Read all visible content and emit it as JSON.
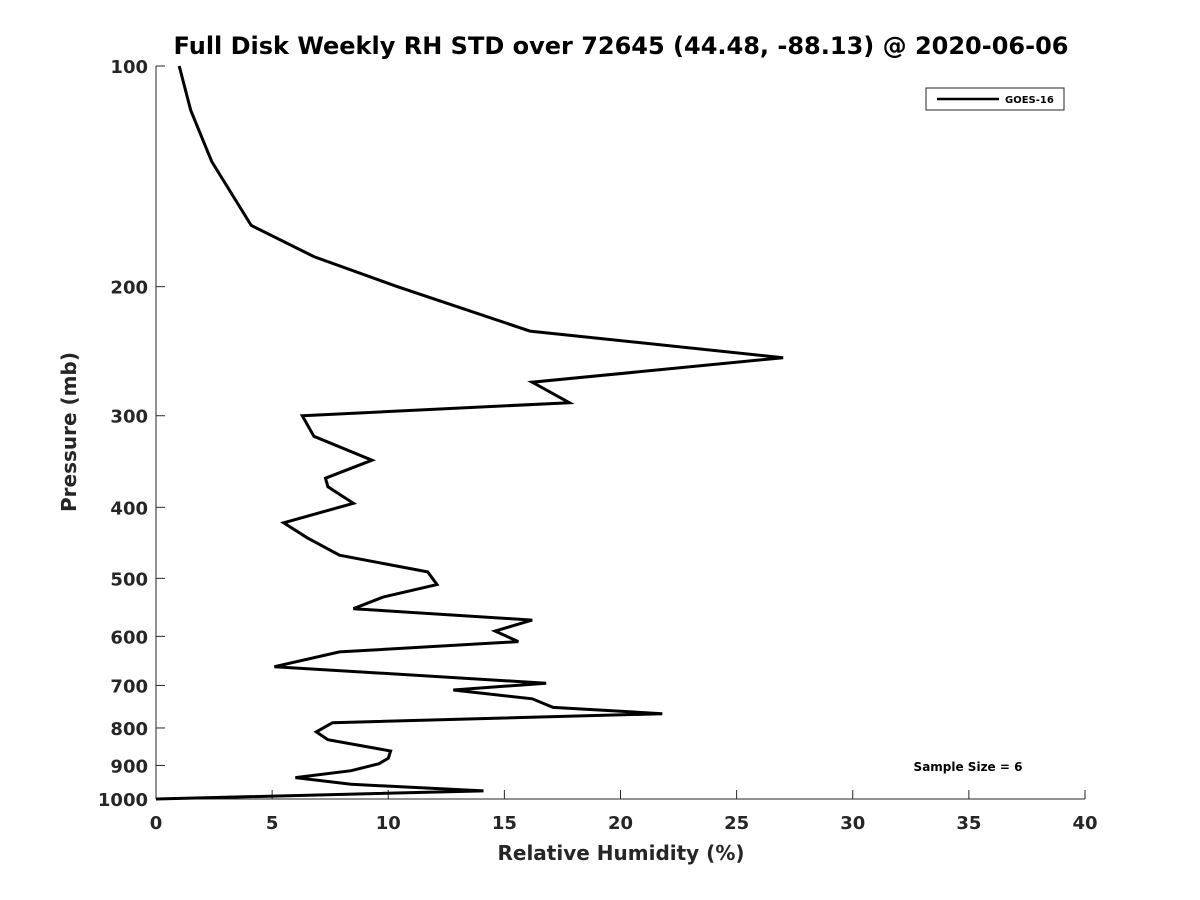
{
  "chart_data": {
    "type": "line",
    "title": "Full Disk Weekly RH STD over 72645 (44.48, -88.13) @ 2020-06-06",
    "xlabel": "Relative Humidity (%)",
    "ylabel": "Pressure (mb)",
    "xlim": [
      0,
      40
    ],
    "ylim": [
      100,
      1000
    ],
    "yscale": "log",
    "y_reversed": true,
    "grid": false,
    "xticks": [
      0,
      5,
      10,
      15,
      20,
      25,
      30,
      35,
      40
    ],
    "yticks": [
      100,
      200,
      300,
      400,
      500,
      600,
      700,
      800,
      900,
      1000
    ],
    "legend_position": "top-right",
    "series": [
      {
        "name": "GOES-16",
        "color": "#000000",
        "x": [
          1.0,
          1.5,
          2.4,
          4.1,
          6.8,
          10.4,
          16.1,
          27.0,
          16.2,
          17.8,
          6.3,
          6.8,
          9.3,
          7.3,
          7.4,
          8.5,
          5.5,
          6.5,
          7.9,
          11.7,
          12.1,
          9.8,
          8.5,
          16.2,
          14.6,
          15.6,
          7.9,
          5.1,
          16.8,
          12.8,
          16.2,
          17.1,
          21.8,
          7.6,
          6.9,
          7.4,
          10.1,
          10.0,
          9.6,
          8.4,
          6.0,
          8.4,
          14.1,
          0.0
        ],
        "y": [
          100,
          115,
          135,
          165,
          182,
          200,
          230,
          250,
          270,
          288,
          300,
          320,
          345,
          365,
          375,
          395,
          420,
          440,
          465,
          490,
          510,
          530,
          550,
          570,
          590,
          610,
          630,
          660,
          695,
          710,
          730,
          750,
          765,
          787,
          810,
          830,
          860,
          880,
          895,
          915,
          935,
          955,
          975,
          1000
        ]
      }
    ],
    "annotations": [
      "Sample Size = 6"
    ]
  }
}
